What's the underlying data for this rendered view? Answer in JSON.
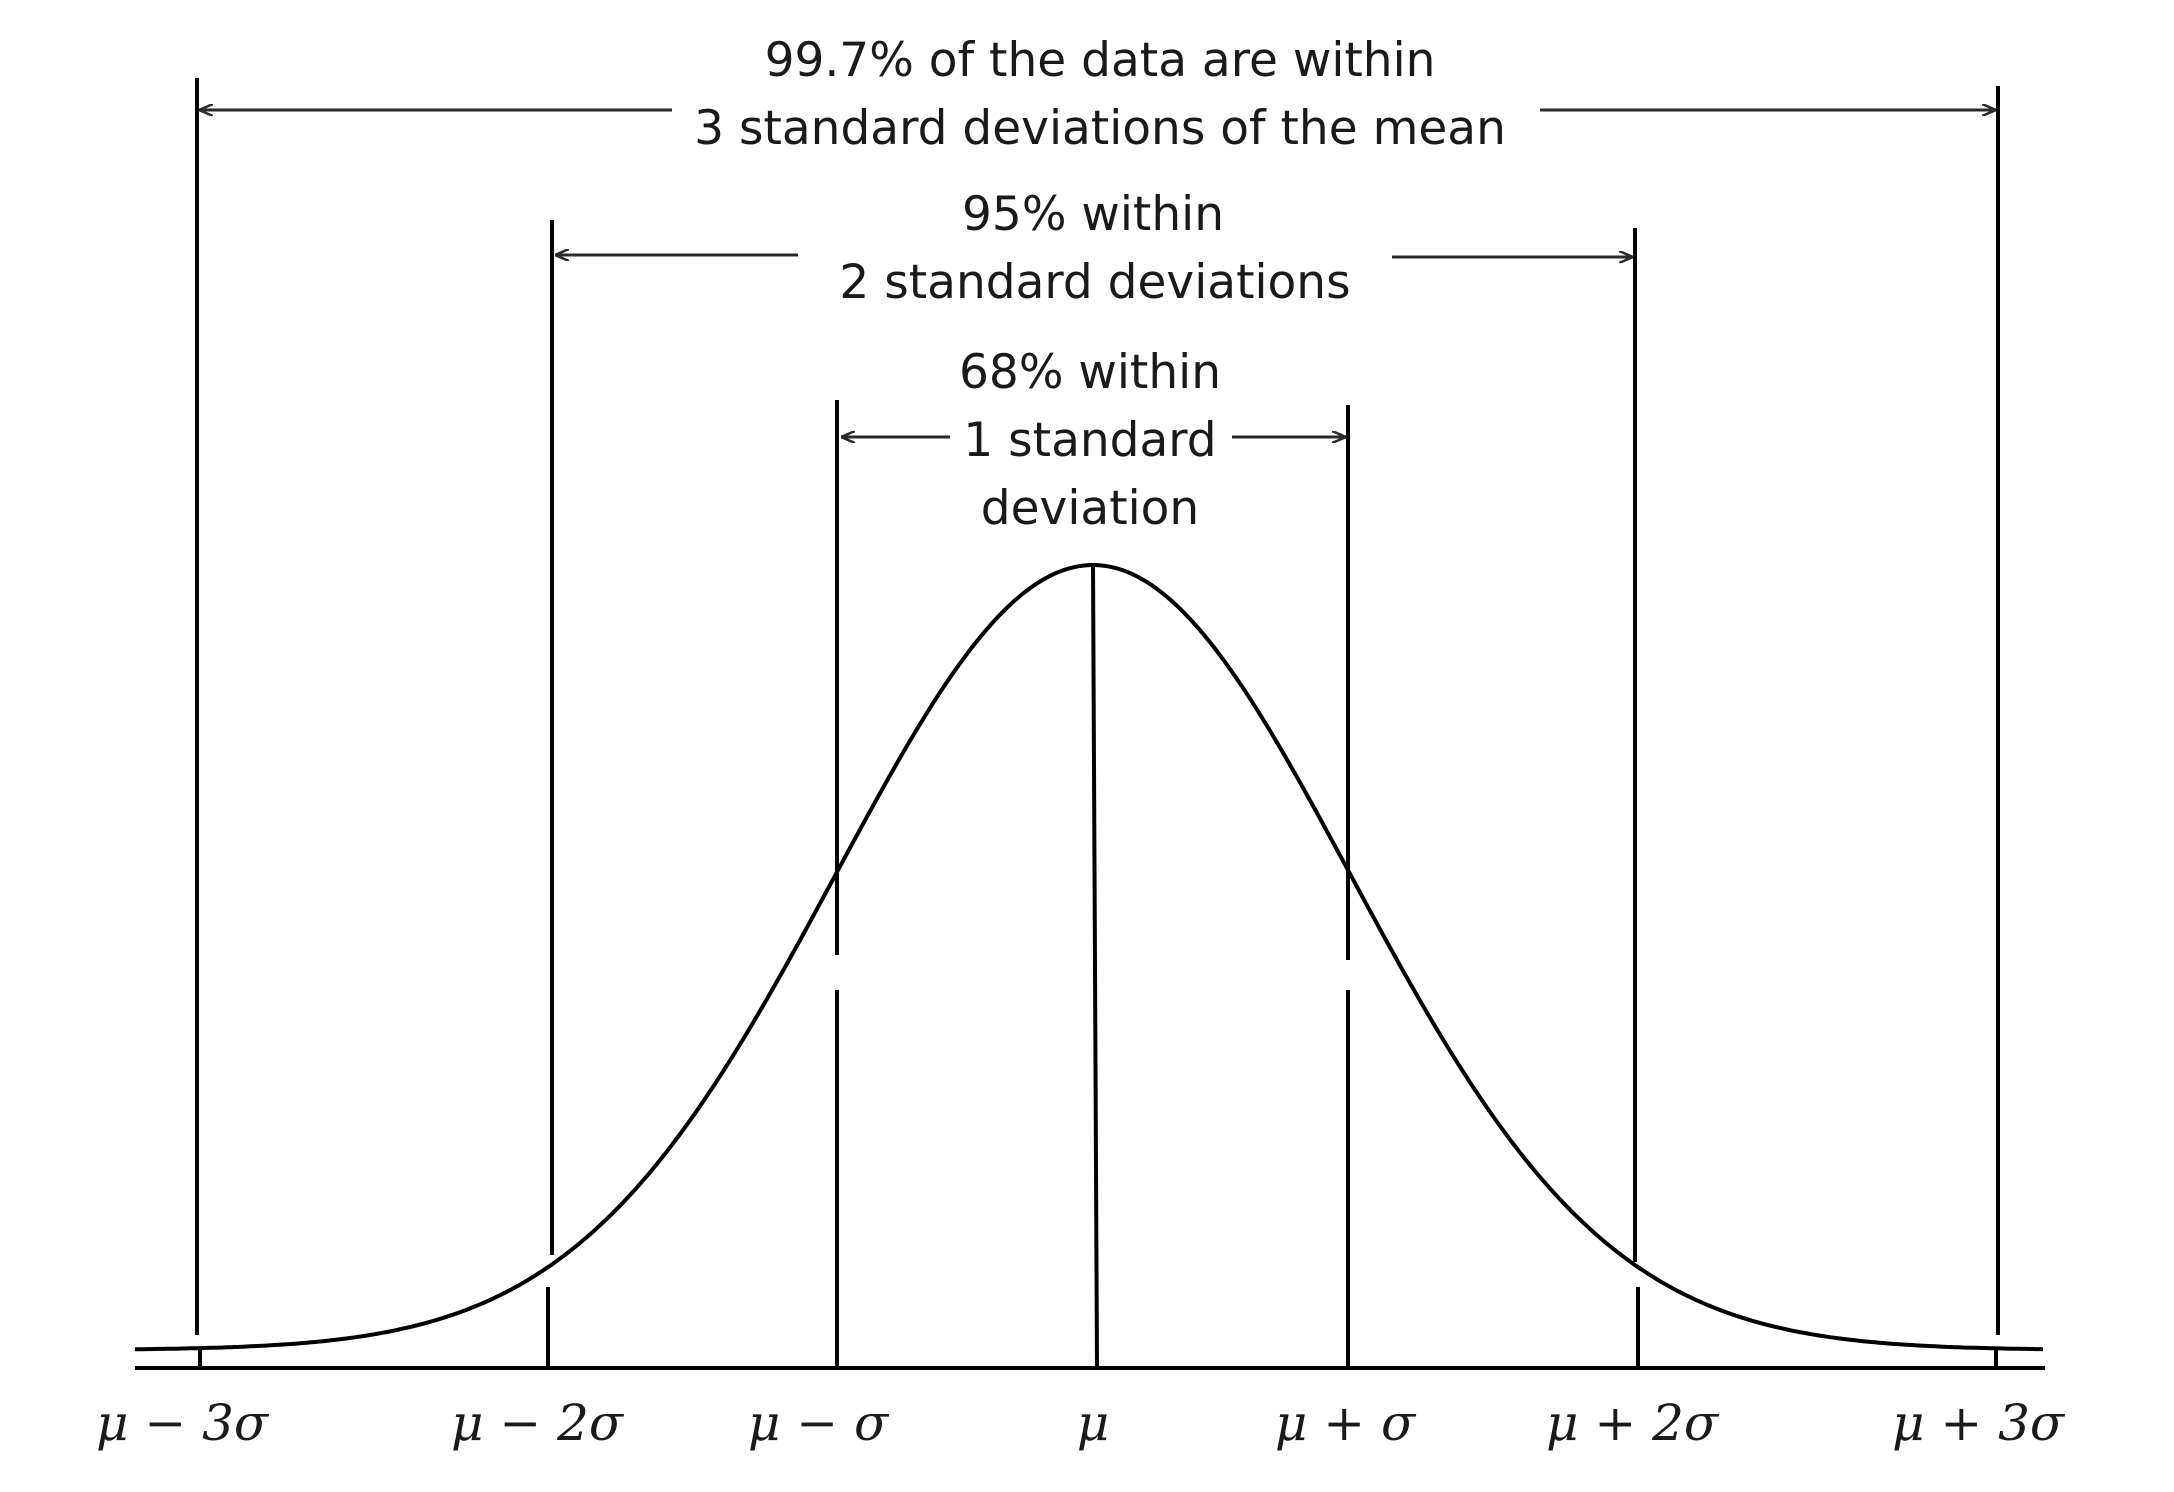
{
  "annotations": {
    "three_sigma": {
      "line1": "99.7% of the data are within",
      "line2": "3 standard deviations of the mean"
    },
    "two_sigma": {
      "line1": "95% within",
      "line2": "2 standard deviations"
    },
    "one_sigma": {
      "line1": "68% within",
      "line2": "1 standard",
      "line3": "deviation"
    }
  },
  "axis": {
    "tick_labels": [
      "μ − 3σ",
      "μ − 2σ",
      "μ − σ",
      "μ",
      "μ + σ",
      "μ + 2σ",
      "μ + 3σ"
    ]
  },
  "colors": {
    "line": "#000000",
    "text": "#1a1a1a",
    "arrow": "#2a2a2a"
  }
}
